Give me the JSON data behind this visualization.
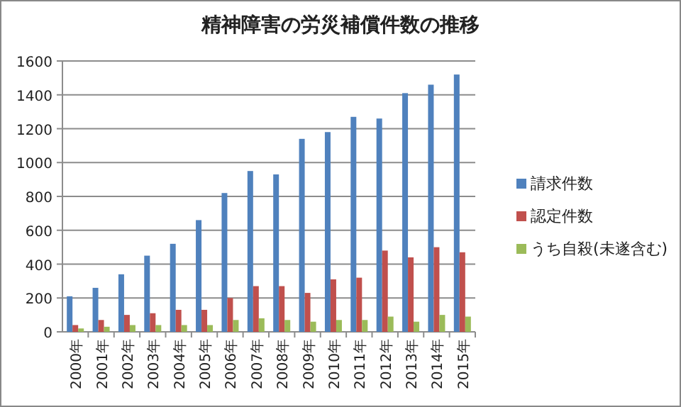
{
  "chart_data": {
    "type": "bar",
    "title": "精神障害の労災補償件数の推移",
    "categories": [
      "2000年",
      "2001年",
      "2002年",
      "2003年",
      "2004年",
      "2005年",
      "2006年",
      "2007年",
      "2008年",
      "2009年",
      "2010年",
      "2011年",
      "2012年",
      "2013年",
      "2014年",
      "2015年"
    ],
    "series": [
      {
        "name": "請求件数",
        "color": "#4f81bd",
        "values": [
          210,
          260,
          340,
          450,
          520,
          660,
          820,
          950,
          930,
          1140,
          1180,
          1270,
          1260,
          1410,
          1460,
          1520
        ]
      },
      {
        "name": "認定件数",
        "color": "#c0504d",
        "values": [
          40,
          70,
          100,
          110,
          130,
          130,
          200,
          270,
          270,
          230,
          310,
          320,
          480,
          440,
          500,
          470
        ]
      },
      {
        "name": "うち自殺(未遂含む)",
        "color": "#9bbb59",
        "values": [
          20,
          30,
          40,
          40,
          40,
          40,
          70,
          80,
          70,
          60,
          70,
          70,
          90,
          60,
          100,
          90
        ]
      }
    ],
    "ylim": [
      0,
      1600
    ],
    "yticks": [
      0,
      200,
      400,
      600,
      800,
      1000,
      1200,
      1400,
      1600
    ],
    "grid": "y",
    "legend": "right"
  }
}
